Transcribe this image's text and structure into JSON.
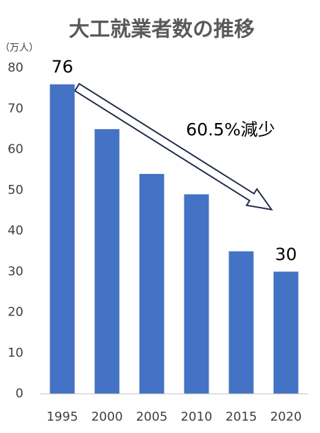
{
  "chart_data": {
    "type": "bar",
    "title": "大工就業者数の推移",
    "y_unit": "（万人）",
    "categories": [
      "1995",
      "2000",
      "2005",
      "2010",
      "2015",
      "2020"
    ],
    "values": [
      76,
      65,
      54,
      49,
      35,
      30
    ],
    "value_labels": [
      "76",
      null,
      null,
      null,
      null,
      "30"
    ],
    "color": "#4472c4",
    "ylim": [
      0,
      80
    ],
    "yticks": [
      0,
      10,
      20,
      30,
      40,
      50,
      60,
      70,
      80
    ],
    "annotation": "60.5%減少"
  }
}
